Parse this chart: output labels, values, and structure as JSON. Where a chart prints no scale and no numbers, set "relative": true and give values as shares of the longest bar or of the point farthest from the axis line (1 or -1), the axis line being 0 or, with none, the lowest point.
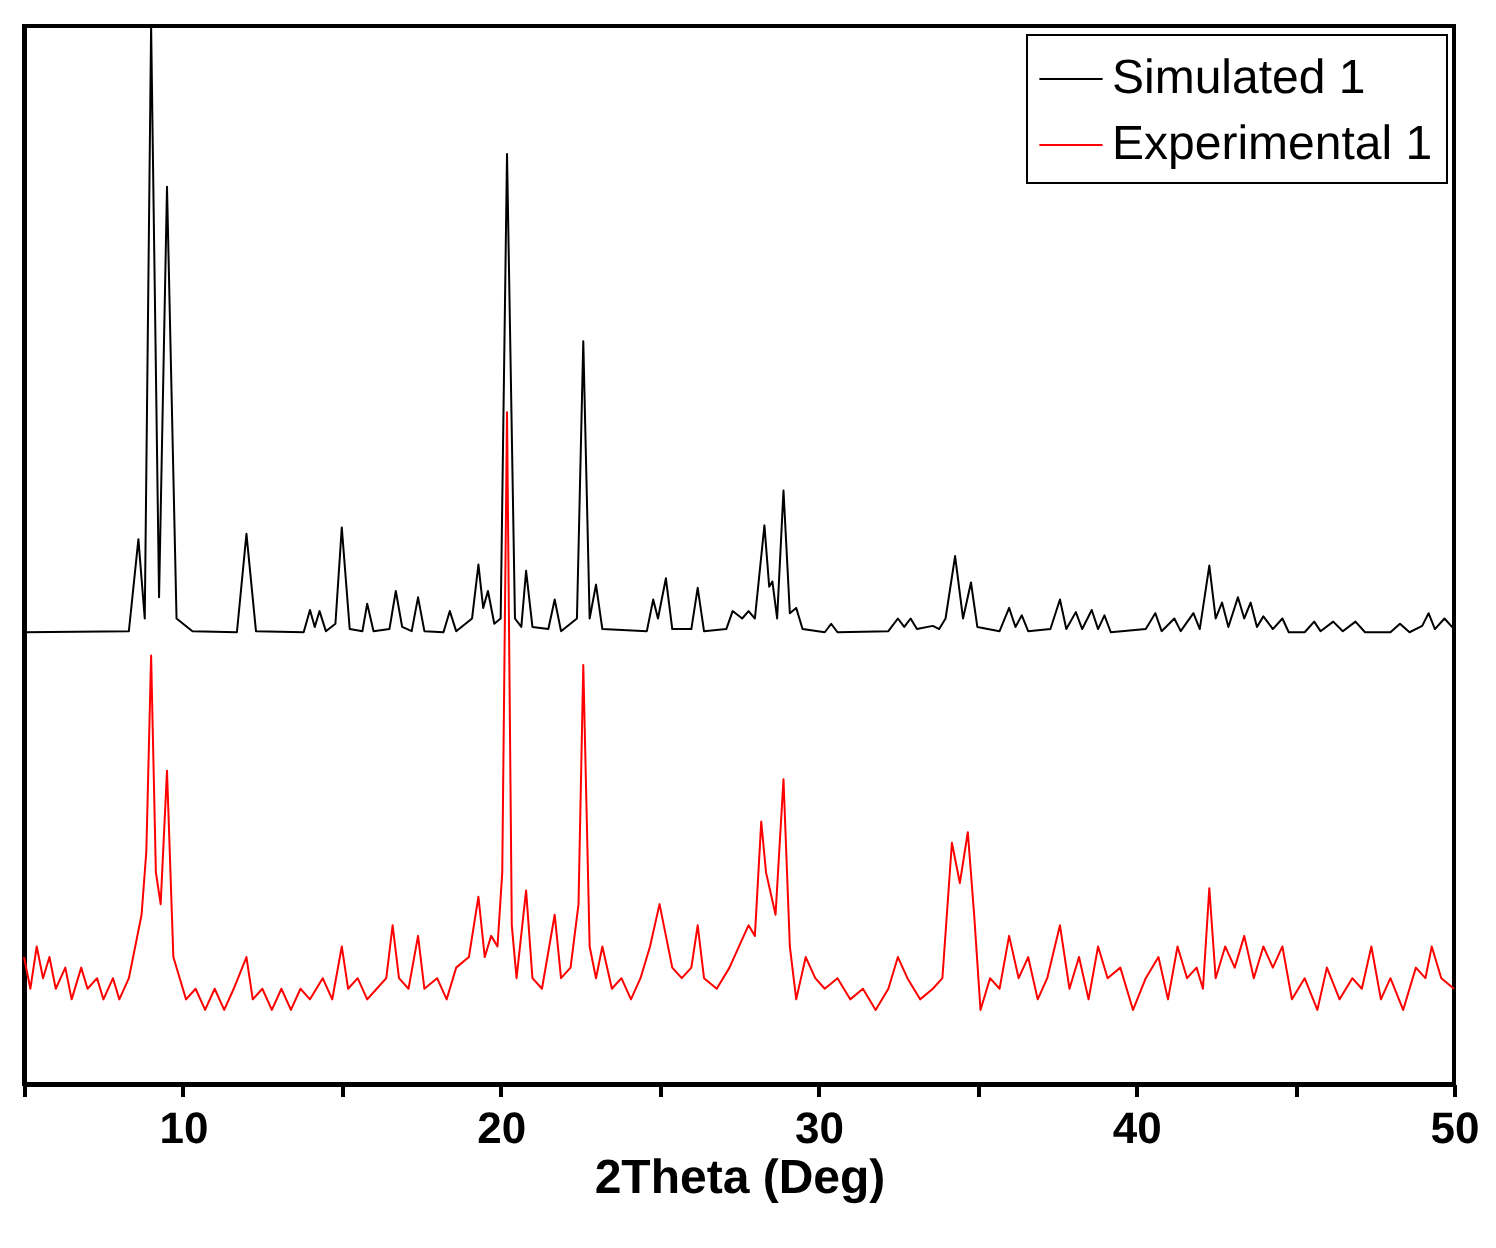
{
  "chart_data": {
    "type": "line",
    "relative": true,
    "xlabel": "2Theta (Deg)",
    "xlim": [
      5,
      50
    ],
    "xticks": [
      {
        "value": 5,
        "label": null
      },
      10,
      {
        "value": 15,
        "label": null
      },
      20,
      {
        "value": 25,
        "label": null
      },
      30,
      {
        "value": 35,
        "label": null
      },
      40,
      {
        "value": 45,
        "label": null
      },
      50
    ],
    "grid": false,
    "legend": "top right",
    "series": [
      {
        "name": "Simulated 1",
        "color": "#000000",
        "x": [
          5,
          8.3,
          8.6,
          8.8,
          9.0,
          9.25,
          9.5,
          9.8,
          10.3,
          11.7,
          12.0,
          12.3,
          13.8,
          14.0,
          14.15,
          14.3,
          14.5,
          14.8,
          15.0,
          15.25,
          15.65,
          15.8,
          16.0,
          16.5,
          16.7,
          16.9,
          17.2,
          17.4,
          17.6,
          18.2,
          18.4,
          18.6,
          19.1,
          19.3,
          19.45,
          19.6,
          19.8,
          20.0,
          20.2,
          20.45,
          20.65,
          20.8,
          21.0,
          21.5,
          21.7,
          21.9,
          22.4,
          22.6,
          22.8,
          23.0,
          23.2,
          24.6,
          24.8,
          24.95,
          25.2,
          25.4,
          26.0,
          26.2,
          26.4,
          27.1,
          27.3,
          27.6,
          27.8,
          28.0,
          28.3,
          28.45,
          28.55,
          28.7,
          28.9,
          29.1,
          29.3,
          29.5,
          30.2,
          30.4,
          30.6,
          32.2,
          32.5,
          32.7,
          32.9,
          33.1,
          33.6,
          33.8,
          34.0,
          34.3,
          34.55,
          34.8,
          35.0,
          35.7,
          36.0,
          36.2,
          36.4,
          36.6,
          37.3,
          37.6,
          37.8,
          38.1,
          38.3,
          38.6,
          38.8,
          39.0,
          39.2,
          40.3,
          40.6,
          40.8,
          41.2,
          41.4,
          41.8,
          42.0,
          42.3,
          42.5,
          42.7,
          42.9,
          43.2,
          43.4,
          43.6,
          43.8,
          44.0,
          44.3,
          44.6,
          44.8,
          45.3,
          45.6,
          45.8,
          46.2,
          46.5,
          46.9,
          47.2,
          48.0,
          48.3,
          48.6,
          49.0,
          49.2,
          49.4,
          49.7,
          50
        ],
        "values": [
          0.427,
          0.428,
          0.515,
          0.44,
          1.0,
          0.46,
          0.848,
          0.44,
          0.428,
          0.427,
          0.52,
          0.428,
          0.427,
          0.448,
          0.432,
          0.447,
          0.428,
          0.435,
          0.526,
          0.43,
          0.428,
          0.454,
          0.428,
          0.43,
          0.466,
          0.432,
          0.428,
          0.46,
          0.428,
          0.427,
          0.447,
          0.428,
          0.44,
          0.491,
          0.45,
          0.466,
          0.435,
          0.44,
          0.879,
          0.44,
          0.432,
          0.485,
          0.432,
          0.43,
          0.458,
          0.428,
          0.44,
          0.702,
          0.44,
          0.472,
          0.43,
          0.428,
          0.458,
          0.44,
          0.478,
          0.43,
          0.43,
          0.469,
          0.428,
          0.43,
          0.447,
          0.44,
          0.447,
          0.44,
          0.528,
          0.47,
          0.475,
          0.44,
          0.561,
          0.445,
          0.45,
          0.43,
          0.427,
          0.435,
          0.427,
          0.428,
          0.44,
          0.432,
          0.44,
          0.43,
          0.433,
          0.43,
          0.44,
          0.499,
          0.44,
          0.474,
          0.432,
          0.428,
          0.45,
          0.432,
          0.443,
          0.428,
          0.43,
          0.458,
          0.43,
          0.446,
          0.43,
          0.448,
          0.43,
          0.443,
          0.427,
          0.43,
          0.445,
          0.428,
          0.44,
          0.428,
          0.445,
          0.43,
          0.49,
          0.44,
          0.455,
          0.432,
          0.46,
          0.44,
          0.455,
          0.432,
          0.442,
          0.43,
          0.44,
          0.427,
          0.427,
          0.437,
          0.428,
          0.437,
          0.428,
          0.437,
          0.427,
          0.427,
          0.435,
          0.427,
          0.433,
          0.445,
          0.43,
          0.44,
          0.43
        ]
      },
      {
        "name": "Experimental 1",
        "color": "#ff0000",
        "x": [
          5,
          5.2,
          5.4,
          5.6,
          5.8,
          6.0,
          6.3,
          6.5,
          6.8,
          7.0,
          7.3,
          7.5,
          7.8,
          8.0,
          8.3,
          8.5,
          8.7,
          8.85,
          9.0,
          9.15,
          9.3,
          9.5,
          9.7,
          9.9,
          10.1,
          10.4,
          10.7,
          11.0,
          11.3,
          11.6,
          12.0,
          12.2,
          12.5,
          12.8,
          13.1,
          13.4,
          13.7,
          14.0,
          14.4,
          14.7,
          15.0,
          15.2,
          15.5,
          15.8,
          16.1,
          16.4,
          16.6,
          16.8,
          17.1,
          17.4,
          17.6,
          18.0,
          18.3,
          18.6,
          19.0,
          19.3,
          19.5,
          19.7,
          19.9,
          20.05,
          20.2,
          20.35,
          20.5,
          20.8,
          21.0,
          21.3,
          21.7,
          21.9,
          22.2,
          22.45,
          22.6,
          22.8,
          23.0,
          23.2,
          23.5,
          23.8,
          24.1,
          24.4,
          24.7,
          25.0,
          25.2,
          25.4,
          25.7,
          26.0,
          26.2,
          26.4,
          26.8,
          27.2,
          27.5,
          27.8,
          28.0,
          28.2,
          28.35,
          28.5,
          28.65,
          28.9,
          29.1,
          29.3,
          29.6,
          29.9,
          30.2,
          30.6,
          31.0,
          31.4,
          31.8,
          32.2,
          32.5,
          32.8,
          33.2,
          33.6,
          33.9,
          34.2,
          34.45,
          34.7,
          34.9,
          35.1,
          35.4,
          35.7,
          36.0,
          36.3,
          36.6,
          36.9,
          37.2,
          37.6,
          37.9,
          38.2,
          38.5,
          38.8,
          39.1,
          39.5,
          39.9,
          40.3,
          40.7,
          41.0,
          41.3,
          41.6,
          41.9,
          42.1,
          42.3,
          42.5,
          42.8,
          43.1,
          43.4,
          43.7,
          44.0,
          44.3,
          44.6,
          44.9,
          45.3,
          45.7,
          46.0,
          46.4,
          46.8,
          47.1,
          47.4,
          47.7,
          48.0,
          48.4,
          48.8,
          49.1,
          49.3,
          49.6,
          50
        ],
        "values": [
          0.12,
          0.09,
          0.13,
          0.1,
          0.12,
          0.09,
          0.11,
          0.08,
          0.11,
          0.09,
          0.1,
          0.08,
          0.1,
          0.08,
          0.1,
          0.13,
          0.16,
          0.22,
          0.405,
          0.2,
          0.17,
          0.296,
          0.12,
          0.1,
          0.08,
          0.09,
          0.07,
          0.09,
          0.07,
          0.09,
          0.12,
          0.08,
          0.09,
          0.07,
          0.09,
          0.07,
          0.09,
          0.08,
          0.1,
          0.08,
          0.13,
          0.09,
          0.1,
          0.08,
          0.09,
          0.1,
          0.15,
          0.1,
          0.09,
          0.14,
          0.09,
          0.1,
          0.08,
          0.11,
          0.12,
          0.177,
          0.12,
          0.14,
          0.13,
          0.2,
          0.635,
          0.15,
          0.1,
          0.183,
          0.1,
          0.09,
          0.16,
          0.1,
          0.11,
          0.17,
          0.396,
          0.13,
          0.1,
          0.13,
          0.09,
          0.1,
          0.08,
          0.1,
          0.13,
          0.17,
          0.14,
          0.11,
          0.1,
          0.11,
          0.15,
          0.1,
          0.09,
          0.11,
          0.13,
          0.15,
          0.14,
          0.248,
          0.2,
          0.18,
          0.16,
          0.288,
          0.13,
          0.08,
          0.12,
          0.1,
          0.09,
          0.1,
          0.08,
          0.09,
          0.07,
          0.09,
          0.12,
          0.1,
          0.08,
          0.09,
          0.1,
          0.228,
          0.19,
          0.238,
          0.16,
          0.07,
          0.1,
          0.09,
          0.14,
          0.1,
          0.12,
          0.08,
          0.1,
          0.15,
          0.09,
          0.12,
          0.08,
          0.13,
          0.1,
          0.11,
          0.07,
          0.1,
          0.12,
          0.08,
          0.13,
          0.1,
          0.11,
          0.09,
          0.185,
          0.1,
          0.13,
          0.11,
          0.14,
          0.1,
          0.13,
          0.11,
          0.13,
          0.08,
          0.1,
          0.07,
          0.11,
          0.08,
          0.1,
          0.09,
          0.13,
          0.08,
          0.1,
          0.07,
          0.11,
          0.1,
          0.13,
          0.1,
          0.09
        ]
      }
    ]
  }
}
